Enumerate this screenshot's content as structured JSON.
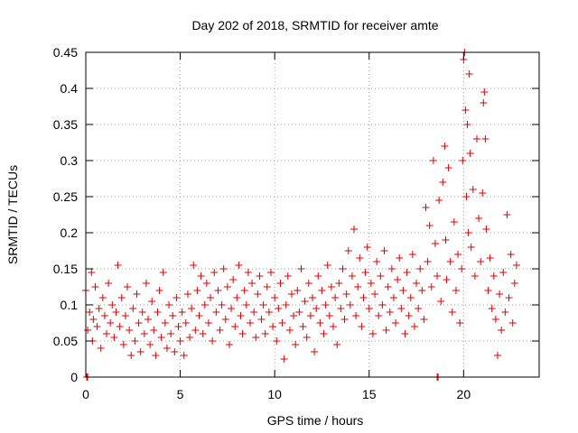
{
  "chart_data": {
    "type": "scatter",
    "title": "Day 202 of 2018, SRMTID for receiver amte",
    "xlabel": "GPS time / hours",
    "ylabel": "SRMTID / TECUs",
    "xlim": [
      0,
      24
    ],
    "ylim": [
      0,
      0.45
    ],
    "xticks": [
      0,
      5,
      10,
      15,
      20
    ],
    "xtick_labels": [
      "0",
      "5",
      "10",
      "15",
      "20"
    ],
    "yticks": [
      0,
      0.05,
      0.1,
      0.15,
      0.2,
      0.25,
      0.3,
      0.35,
      0.4,
      0.45
    ],
    "ytick_labels": [
      "0",
      "0.05",
      "0.1",
      "0.15",
      "0.2",
      "0.25",
      "0.3",
      "0.35",
      "0.4",
      "0.45"
    ],
    "grid": true,
    "marker": "+",
    "marker_color": "#e00000",
    "series": [
      {
        "name": "SRMTID",
        "points": [
          [
            0.05,
            0.0
          ],
          [
            0.1,
            0.0
          ],
          [
            18.6,
            0.0
          ],
          [
            18.65,
            0.0
          ],
          [
            0.0,
            0.12
          ],
          [
            0.1,
            0.065
          ],
          [
            0.2,
            0.09
          ],
          [
            0.3,
            0.145
          ],
          [
            0.35,
            0.05
          ],
          [
            0.4,
            0.08
          ],
          [
            0.5,
            0.125
          ],
          [
            0.6,
            0.07
          ],
          [
            0.7,
            0.095
          ],
          [
            0.8,
            0.04
          ],
          [
            0.9,
            0.11
          ],
          [
            1.0,
            0.085
          ],
          [
            1.1,
            0.06
          ],
          [
            1.2,
            0.13
          ],
          [
            1.3,
            0.075
          ],
          [
            1.4,
            0.1
          ],
          [
            1.5,
            0.055
          ],
          [
            1.6,
            0.09
          ],
          [
            1.7,
            0.155
          ],
          [
            1.8,
            0.07
          ],
          [
            1.9,
            0.11
          ],
          [
            2.0,
            0.045
          ],
          [
            2.1,
            0.085
          ],
          [
            2.2,
            0.125
          ],
          [
            2.3,
            0.065
          ],
          [
            2.4,
            0.03
          ],
          [
            2.5,
            0.095
          ],
          [
            2.6,
            0.05
          ],
          [
            2.7,
            0.115
          ],
          [
            2.8,
            0.075
          ],
          [
            2.9,
            0.035
          ],
          [
            3.0,
            0.09
          ],
          [
            3.1,
            0.06
          ],
          [
            3.2,
            0.13
          ],
          [
            3.3,
            0.08
          ],
          [
            3.4,
            0.045
          ],
          [
            3.5,
            0.105
          ],
          [
            3.6,
            0.065
          ],
          [
            3.7,
            0.03
          ],
          [
            3.8,
            0.09
          ],
          [
            3.9,
            0.12
          ],
          [
            4.0,
            0.055
          ],
          [
            4.1,
            0.145
          ],
          [
            4.2,
            0.075
          ],
          [
            4.3,
            0.04
          ],
          [
            4.4,
            0.1
          ],
          [
            4.5,
            0.06
          ],
          [
            4.6,
            0.085
          ],
          [
            4.7,
            0.035
          ],
          [
            4.8,
            0.11
          ],
          [
            4.9,
            0.07
          ],
          [
            5.0,
            0.05
          ],
          [
            5.1,
            0.09
          ],
          [
            5.2,
            0.03
          ],
          [
            5.3,
            0.075
          ],
          [
            5.4,
            0.115
          ],
          [
            5.5,
            0.055
          ],
          [
            5.6,
            0.095
          ],
          [
            5.7,
            0.155
          ],
          [
            5.8,
            0.065
          ],
          [
            5.9,
            0.12
          ],
          [
            6.0,
            0.085
          ],
          [
            6.1,
            0.14
          ],
          [
            6.2,
            0.06
          ],
          [
            6.3,
            0.1
          ],
          [
            6.4,
            0.13
          ],
          [
            6.5,
            0.075
          ],
          [
            6.6,
            0.11
          ],
          [
            6.7,
            0.05
          ],
          [
            6.8,
            0.145
          ],
          [
            6.9,
            0.09
          ],
          [
            7.0,
            0.12
          ],
          [
            7.1,
            0.065
          ],
          [
            7.2,
            0.1
          ],
          [
            7.3,
            0.15
          ],
          [
            7.4,
            0.08
          ],
          [
            7.5,
            0.125
          ],
          [
            7.6,
            0.045
          ],
          [
            7.7,
            0.095
          ],
          [
            7.8,
            0.135
          ],
          [
            7.9,
            0.07
          ],
          [
            8.0,
            0.11
          ],
          [
            8.1,
            0.155
          ],
          [
            8.2,
            0.085
          ],
          [
            8.3,
            0.06
          ],
          [
            8.4,
            0.12
          ],
          [
            8.5,
            0.1
          ],
          [
            8.6,
            0.145
          ],
          [
            8.7,
            0.075
          ],
          [
            8.8,
            0.13
          ],
          [
            8.9,
            0.09
          ],
          [
            9.0,
            0.055
          ],
          [
            9.1,
            0.115
          ],
          [
            9.2,
            0.14
          ],
          [
            9.3,
            0.08
          ],
          [
            9.4,
            0.1
          ],
          [
            9.5,
            0.06
          ],
          [
            9.6,
            0.125
          ],
          [
            9.7,
            0.09
          ],
          [
            9.8,
            0.145
          ],
          [
            9.9,
            0.07
          ],
          [
            10.0,
            0.11
          ],
          [
            10.1,
            0.05
          ],
          [
            10.2,
            0.095
          ],
          [
            10.3,
            0.13
          ],
          [
            10.4,
            0.075
          ],
          [
            10.5,
            0.025
          ],
          [
            10.6,
            0.1
          ],
          [
            10.7,
            0.14
          ],
          [
            10.8,
            0.065
          ],
          [
            10.9,
            0.115
          ],
          [
            11.0,
            0.085
          ],
          [
            11.1,
            0.045
          ],
          [
            11.2,
            0.12
          ],
          [
            11.3,
            0.09
          ],
          [
            11.4,
            0.15
          ],
          [
            11.5,
            0.07
          ],
          [
            11.6,
            0.105
          ],
          [
            11.7,
            0.055
          ],
          [
            11.8,
            0.13
          ],
          [
            11.9,
            0.085
          ],
          [
            12.0,
            0.11
          ],
          [
            12.1,
            0.035
          ],
          [
            12.2,
            0.095
          ],
          [
            12.3,
            0.14
          ],
          [
            12.4,
            0.075
          ],
          [
            12.5,
            0.12
          ],
          [
            12.6,
            0.06
          ],
          [
            12.7,
            0.1
          ],
          [
            12.8,
            0.155
          ],
          [
            12.9,
            0.085
          ],
          [
            13.0,
            0.125
          ],
          [
            13.1,
            0.07
          ],
          [
            13.2,
            0.11
          ],
          [
            13.3,
            0.045
          ],
          [
            13.4,
            0.13
          ],
          [
            13.5,
            0.095
          ],
          [
            13.6,
            0.15
          ],
          [
            13.7,
            0.08
          ],
          [
            13.8,
            0.115
          ],
          [
            13.9,
            0.175
          ],
          [
            14.0,
            0.1
          ],
          [
            14.1,
            0.14
          ],
          [
            14.2,
            0.205
          ],
          [
            14.3,
            0.085
          ],
          [
            14.4,
            0.125
          ],
          [
            14.5,
            0.165
          ],
          [
            14.6,
            0.07
          ],
          [
            14.7,
            0.11
          ],
          [
            14.8,
            0.145
          ],
          [
            14.9,
            0.18
          ],
          [
            15.0,
            0.095
          ],
          [
            15.1,
            0.13
          ],
          [
            15.2,
            0.06
          ],
          [
            15.3,
            0.115
          ],
          [
            15.4,
            0.16
          ],
          [
            15.5,
            0.085
          ],
          [
            15.6,
            0.14
          ],
          [
            15.7,
            0.1
          ],
          [
            15.8,
            0.175
          ],
          [
            15.9,
            0.065
          ],
          [
            16.0,
            0.125
          ],
          [
            16.1,
            0.09
          ],
          [
            16.2,
            0.15
          ],
          [
            16.3,
            0.11
          ],
          [
            16.4,
            0.075
          ],
          [
            16.5,
            0.135
          ],
          [
            16.6,
            0.165
          ],
          [
            16.7,
            0.095
          ],
          [
            16.8,
            0.12
          ],
          [
            16.9,
            0.06
          ],
          [
            17.0,
            0.145
          ],
          [
            17.1,
            0.085
          ],
          [
            17.2,
            0.11
          ],
          [
            17.3,
            0.17
          ],
          [
            17.4,
            0.07
          ],
          [
            17.5,
            0.13
          ],
          [
            17.6,
            0.095
          ],
          [
            17.7,
            0.15
          ],
          [
            17.8,
            0.12
          ],
          [
            17.9,
            0.08
          ],
          [
            18.0,
            0.235
          ],
          [
            18.1,
            0.16
          ],
          [
            18.2,
            0.21
          ],
          [
            18.3,
            0.125
          ],
          [
            18.4,
            0.3
          ],
          [
            18.5,
            0.185
          ],
          [
            18.6,
            0.14
          ],
          [
            18.7,
            0.245
          ],
          [
            18.8,
            0.105
          ],
          [
            18.9,
            0.27
          ],
          [
            19.0,
            0.32
          ],
          [
            19.05,
            0.19
          ],
          [
            19.1,
            0.135
          ],
          [
            19.2,
            0.29
          ],
          [
            19.3,
            0.16
          ],
          [
            19.4,
            0.09
          ],
          [
            19.5,
            0.215
          ],
          [
            19.6,
            0.12
          ],
          [
            19.7,
            0.17
          ],
          [
            19.8,
            0.075
          ],
          [
            19.9,
            0.15
          ],
          [
            19.95,
            0.3
          ],
          [
            20.0,
            0.44
          ],
          [
            20.05,
            0.45
          ],
          [
            20.1,
            0.37
          ],
          [
            20.15,
            0.25
          ],
          [
            20.2,
            0.35
          ],
          [
            20.25,
            0.2
          ],
          [
            20.3,
            0.42
          ],
          [
            20.35,
            0.31
          ],
          [
            20.4,
            0.18
          ],
          [
            20.5,
            0.26
          ],
          [
            20.6,
            0.14
          ],
          [
            20.7,
            0.33
          ],
          [
            20.8,
            0.22
          ],
          [
            20.9,
            0.16
          ],
          [
            21.0,
            0.255
          ],
          [
            21.05,
            0.38
          ],
          [
            21.1,
            0.395
          ],
          [
            21.15,
            0.33
          ],
          [
            21.2,
            0.205
          ],
          [
            21.3,
            0.12
          ],
          [
            21.4,
            0.165
          ],
          [
            21.5,
            0.095
          ],
          [
            21.6,
            0.14
          ],
          [
            21.7,
            0.08
          ],
          [
            21.8,
            0.03
          ],
          [
            21.9,
            0.115
          ],
          [
            22.0,
            0.065
          ],
          [
            22.1,
            0.145
          ],
          [
            22.2,
            0.09
          ],
          [
            22.3,
            0.225
          ],
          [
            22.4,
            0.11
          ],
          [
            22.5,
            0.17
          ],
          [
            22.6,
            0.075
          ],
          [
            22.7,
            0.13
          ],
          [
            22.8,
            0.155
          ]
        ]
      }
    ]
  }
}
